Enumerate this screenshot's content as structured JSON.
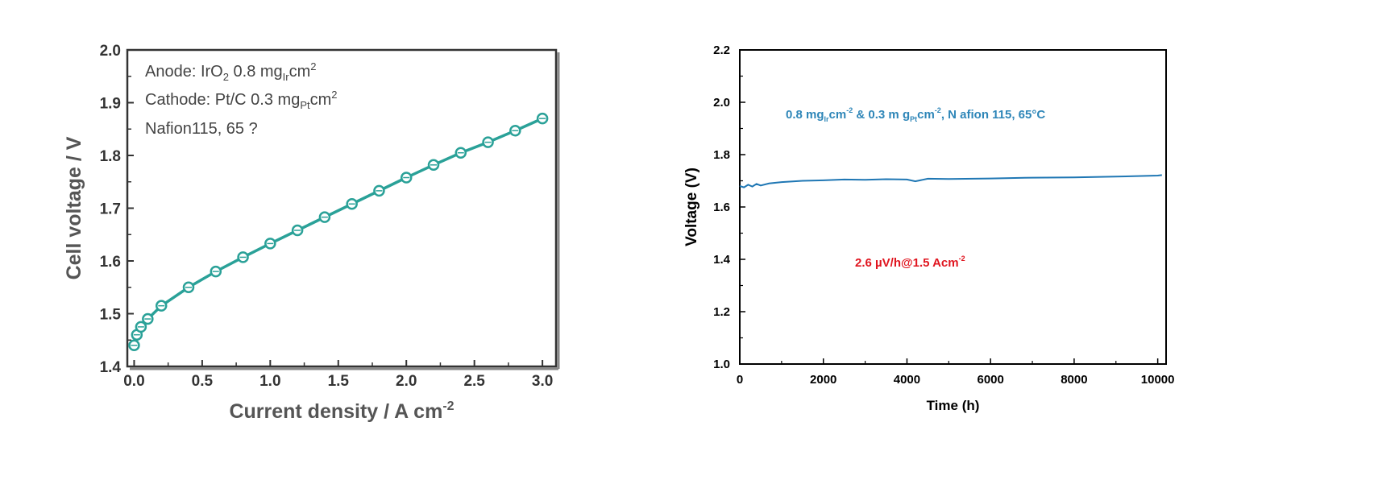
{
  "chart_data": [
    {
      "type": "line",
      "xlabel": "Current density / A cm",
      "xlabel_sup": "-2",
      "ylabel": "Cell voltage / V",
      "xlim": [
        -0.05,
        3.1
      ],
      "ylim": [
        1.4,
        2.0
      ],
      "xticks": [
        "0.0",
        "0.5",
        "1.0",
        "1.5",
        "2.0",
        "2.5",
        "3.0"
      ],
      "yticks": [
        "1.4",
        "1.5",
        "1.6",
        "1.7",
        "1.8",
        "1.9",
        "2.0"
      ],
      "annotations": [
        {
          "base": "Anode: IrO",
          "sub1": "2",
          "mid": " 0.8 mg",
          "sub2": "Ir",
          "tail": "cm",
          "sup": "2"
        },
        {
          "base": "Cathode: Pt/C 0.3 mg",
          "sub1": "",
          "mid": "",
          "sub2": "Pt",
          "tail": "cm",
          "sup": "2"
        },
        {
          "base": "Nafion115, 65 ?",
          "sub1": "",
          "mid": "",
          "sub2": "",
          "tail": "",
          "sup": ""
        }
      ],
      "series": [
        {
          "color": "#2aa198",
          "x": [
            0.0,
            0.02,
            0.05,
            0.1,
            0.2,
            0.4,
            0.6,
            0.8,
            1.0,
            1.2,
            1.4,
            1.6,
            1.8,
            2.0,
            2.2,
            2.4,
            2.6,
            2.8,
            3.0
          ],
          "y": [
            1.44,
            1.46,
            1.475,
            1.49,
            1.515,
            1.55,
            1.58,
            1.607,
            1.633,
            1.658,
            1.683,
            1.708,
            1.733,
            1.758,
            1.782,
            1.805,
            1.825,
            1.847,
            1.87
          ]
        }
      ]
    },
    {
      "type": "line",
      "xlabel": "Time (h)",
      "ylabel": "Voltage (V)",
      "xlim": [
        0,
        10200
      ],
      "ylim": [
        1.0,
        2.2
      ],
      "xticks": [
        "0",
        "2000",
        "4000",
        "6000",
        "8000",
        "10000"
      ],
      "yticks": [
        "1.0",
        "1.2",
        "1.4",
        "1.6",
        "1.8",
        "2.0",
        "2.2"
      ],
      "annotations": [
        {
          "text": "0.8 mg",
          "sub1": "Ir",
          "t2": "cm",
          "sup1": "-2",
          "t3": " & 0.3 m g",
          "sub2": "Pt",
          "t4": "cm",
          "sup2": "-2",
          "t5": ", N afion 115, 65°C",
          "color": "#2e86b8"
        },
        {
          "text": "2.6 µV/h@1.5 Acm",
          "sup1": "-2",
          "color": "#e0151f"
        }
      ],
      "series": [
        {
          "color": "#1f77b4",
          "x": [
            0,
            100,
            200,
            300,
            400,
            500,
            700,
            1000,
            1500,
            2000,
            2500,
            3000,
            3500,
            4000,
            4200,
            4500,
            5000,
            6000,
            7000,
            8000,
            9000,
            10000,
            10100
          ],
          "y": [
            1.68,
            1.675,
            1.685,
            1.678,
            1.688,
            1.682,
            1.69,
            1.695,
            1.7,
            1.702,
            1.705,
            1.704,
            1.706,
            1.705,
            1.698,
            1.708,
            1.707,
            1.709,
            1.712,
            1.713,
            1.716,
            1.72,
            1.722
          ]
        }
      ]
    }
  ]
}
